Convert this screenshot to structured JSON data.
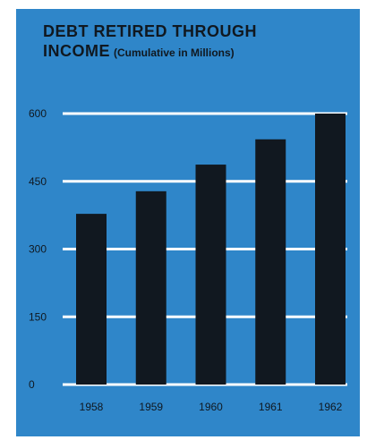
{
  "chart_data": {
    "type": "bar",
    "title": "DEBT RETIRED THROUGH",
    "title_line2": "INCOME",
    "subtitle": "(Cumulative in Millions)",
    "categories": [
      "1958",
      "1959",
      "1960",
      "1961",
      "1962"
    ],
    "values": [
      378,
      428,
      487,
      543,
      600
    ],
    "yticks": [
      0,
      150,
      300,
      450,
      600
    ],
    "ylim": [
      0,
      600
    ],
    "grid": true,
    "colors": {
      "background": "#2f86c9",
      "bars": "#111820",
      "grid": "#ffffff"
    }
  }
}
